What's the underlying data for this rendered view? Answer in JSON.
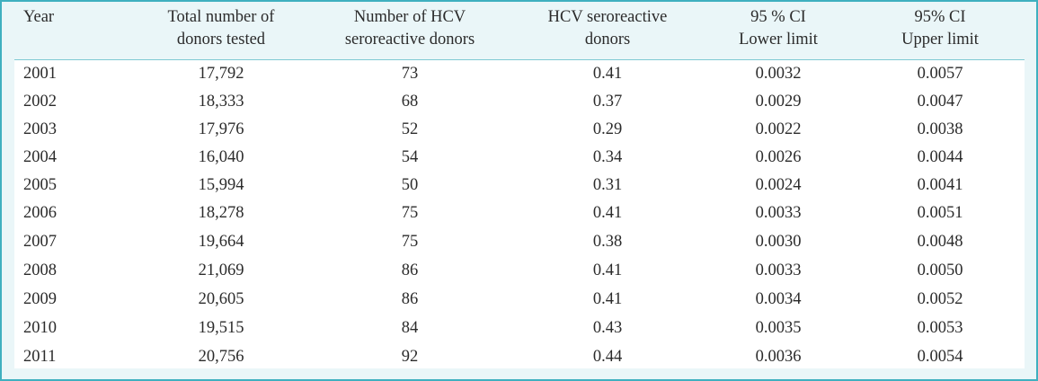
{
  "table": {
    "headers": [
      {
        "line1": "Year",
        "line2": ""
      },
      {
        "line1": "Total number of",
        "line2": "donors tested"
      },
      {
        "line1": "Number of HCV",
        "line2": "seroreactive donors"
      },
      {
        "line1": "HCV seroreactive",
        "line2": "donors"
      },
      {
        "line1": "95 % CI",
        "line2": "Lower limit"
      },
      {
        "line1": "95% CI",
        "line2": "Upper limit"
      }
    ],
    "rows": [
      [
        "2001",
        "17,792",
        "73",
        "0.41",
        "0.0032",
        "0.0057"
      ],
      [
        "2002",
        "18,333",
        "68",
        "0.37",
        "0.0029",
        "0.0047"
      ],
      [
        "2003",
        "17,976",
        "52",
        "0.29",
        "0.0022",
        "0.0038"
      ],
      [
        "2004",
        "16,040",
        "54",
        "0.34",
        "0.0026",
        "0.0044"
      ],
      [
        "2005",
        "15,994",
        "50",
        "0.31",
        "0.0024",
        "0.0041"
      ],
      [
        "2006",
        "18,278",
        "75",
        "0.41",
        "0.0033",
        "0.0051"
      ],
      [
        "2007",
        "19,664",
        "75",
        "0.38",
        "0.0030",
        "0.0048"
      ],
      [
        "2008",
        "21,069",
        "86",
        "0.41",
        "0.0033",
        "0.0050"
      ],
      [
        "2009",
        "20,605",
        "86",
        "0.41",
        "0.0034",
        "0.0052"
      ],
      [
        "2010",
        "19,515",
        "84",
        "0.43",
        "0.0035",
        "0.0053"
      ],
      [
        "2011",
        "20,756",
        "92",
        "0.44",
        "0.0036",
        "0.0054"
      ]
    ]
  },
  "colors": {
    "border": "#3fb0bf",
    "header_background": "#eaf6f8",
    "body_background": "#ffffff",
    "text": "#2b2b2b"
  }
}
